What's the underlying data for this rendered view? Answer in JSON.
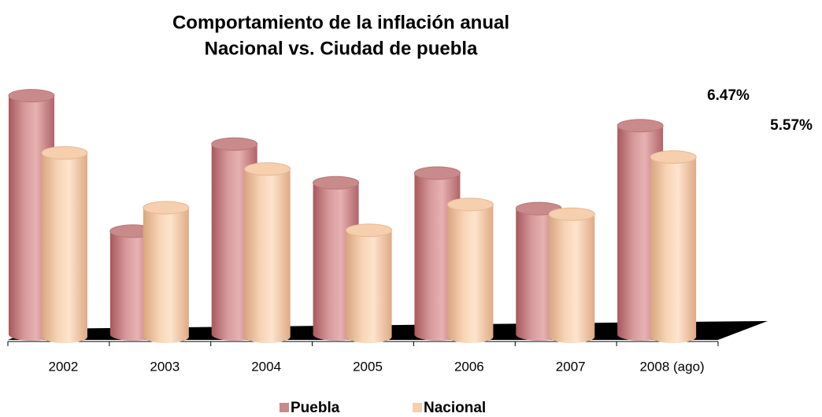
{
  "chart_data": {
    "type": "bar",
    "title": [
      "Comportamiento de la inflación anual",
      "Nacional vs. Ciudad de puebla"
    ],
    "categories": [
      "2002",
      "2003",
      "2004",
      "2005",
      "2006",
      "2007",
      "2008 (ago)"
    ],
    "series": [
      {
        "name": "Puebla",
        "color": "#c98a8c",
        "values": [
          7.4,
          3.2,
          5.9,
          4.7,
          5.0,
          3.9,
          6.47
        ],
        "value_labels": [
          null,
          null,
          null,
          null,
          null,
          null,
          "6.47%"
        ]
      },
      {
        "name": "Nacional",
        "color": "#f5cfae",
        "values": [
          5.7,
          4.0,
          5.2,
          3.3,
          4.1,
          3.8,
          5.57
        ],
        "value_labels": [
          null,
          null,
          null,
          null,
          null,
          null,
          "5.57%"
        ]
      }
    ]
  }
}
